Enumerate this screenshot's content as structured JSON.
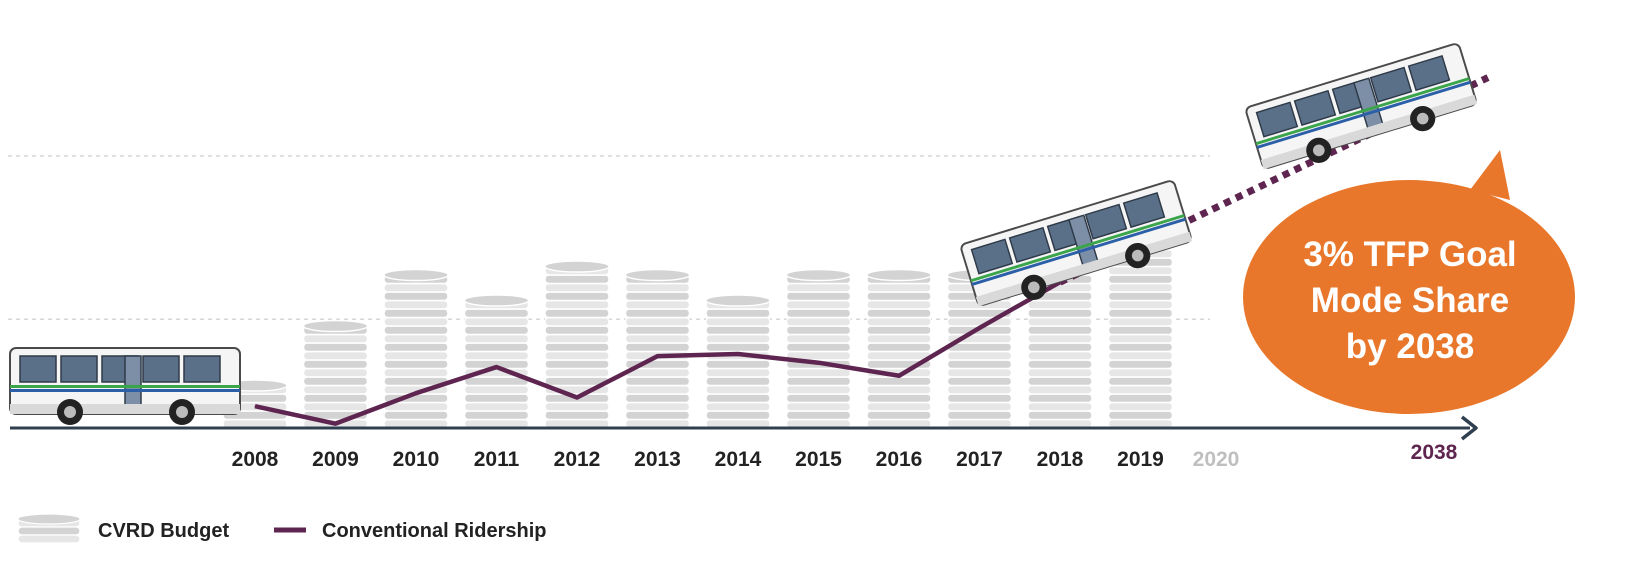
{
  "chart_data": {
    "type": "bar+line",
    "categories": [
      "2008",
      "2009",
      "2010",
      "2011",
      "2012",
      "2013",
      "2014",
      "2015",
      "2016",
      "2017",
      "2018",
      "2019"
    ],
    "future_ticks": [
      "2020",
      "2038"
    ],
    "series": [
      {
        "name": "CVRD Budget",
        "kind": "coin-stack-bar",
        "values": [
          2.1,
          4.7,
          6.9,
          6.0,
          7.6,
          6.9,
          6.0,
          6.9,
          6.9,
          7.2,
          7.8,
          9.4
        ]
      },
      {
        "name": "Conventional Ridership",
        "kind": "line",
        "values": [
          1.0,
          0.2,
          1.6,
          2.8,
          1.4,
          3.3,
          3.4,
          3.0,
          2.4,
          4.6,
          6.7,
          null
        ]
      }
    ],
    "projection": {
      "style": "dotted",
      "from": {
        "x": "2018",
        "y": 6.7
      },
      "to": {
        "x": "2038",
        "y": 16.1
      }
    },
    "annotation": {
      "lines": [
        "3% TFP Goal",
        "Mode Share",
        "by 2038"
      ]
    },
    "ylim": [
      0,
      17
    ],
    "y_gridlines": [
      5,
      12.5
    ],
    "grid": true,
    "y_axis_labels": false,
    "legend_placement": "bottom-left"
  },
  "colors": {
    "coin_light": "#e6e6e6",
    "coin_mid": "#d3d3d3",
    "coin_dark": "#bdbdbd",
    "ridership_line": "#5e2550",
    "axis": "#2f3f4f",
    "future_tick": "#bfbfbf",
    "goal_tick": "#5e2550",
    "goal_bubble": "#e8772b",
    "bus_body": "#f5f5f5",
    "bus_window": "#5a6f88",
    "bus_stripe_green": "#3aa54a",
    "bus_stripe_blue": "#2b5fa8"
  },
  "icons": {
    "budget": "coin-stack-icon",
    "vehicle": "bus-icon"
  }
}
